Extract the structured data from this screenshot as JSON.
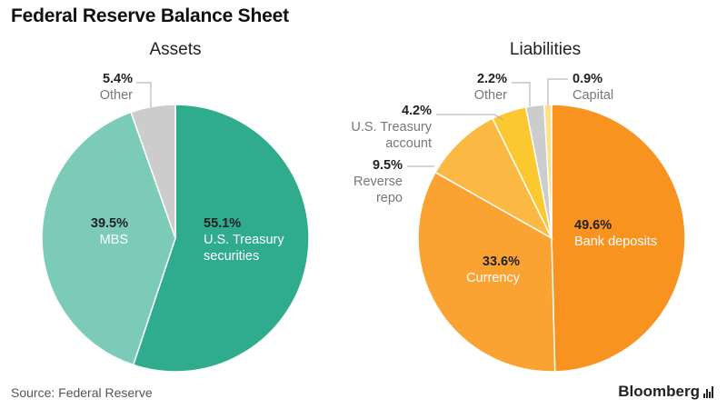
{
  "title": "Federal Reserve Balance Sheet",
  "source": "Source: Federal Reserve",
  "brand": "Bloomberg",
  "chart_data": [
    {
      "type": "pie",
      "title": "Assets",
      "slices": [
        {
          "pct": "55.1%",
          "value": 55.1,
          "label_lines": [
            "U.S. Treasury",
            "securities"
          ],
          "color": "#2fac8e",
          "label_color": "#ffffff"
        },
        {
          "pct": "39.5%",
          "value": 39.5,
          "label_lines": [
            "MBS"
          ],
          "color": "#7ccbb9",
          "label_color": "#ffffff"
        },
        {
          "pct": "5.4%",
          "value": 5.4,
          "label_lines": [
            "Other"
          ],
          "color": "#cccccc",
          "label_color": "#777777"
        }
      ]
    },
    {
      "type": "pie",
      "title": "Liabilities",
      "slices": [
        {
          "pct": "49.6%",
          "value": 49.6,
          "label_lines": [
            "Bank deposits"
          ],
          "color": "#f7931e",
          "label_color": "#ffffff"
        },
        {
          "pct": "33.6%",
          "value": 33.6,
          "label_lines": [
            "Currency"
          ],
          "color": "#fba332",
          "label_color": "#ffffff"
        },
        {
          "pct": "9.5%",
          "value": 9.5,
          "label_lines": [
            "Reverse",
            "repo"
          ],
          "color": "#fbb843",
          "label_color": "#777777"
        },
        {
          "pct": "4.2%",
          "value": 4.2,
          "label_lines": [
            "U.S. Treasury",
            "account"
          ],
          "color": "#fcc830",
          "label_color": "#777777"
        },
        {
          "pct": "2.2%",
          "value": 2.2,
          "label_lines": [
            "Other"
          ],
          "color": "#cccccc",
          "label_color": "#777777"
        },
        {
          "pct": "0.9%",
          "value": 0.9,
          "label_lines": [
            "Capital"
          ],
          "color": "#fde08a",
          "label_color": "#777777"
        }
      ]
    }
  ]
}
